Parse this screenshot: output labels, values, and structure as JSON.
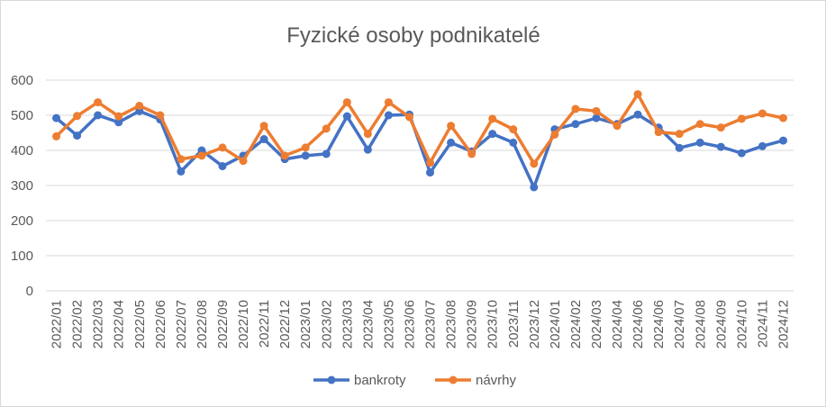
{
  "chart_data": {
    "type": "line",
    "title": "Fyzické osoby podnikatelé",
    "xlabel": "",
    "ylabel": "",
    "ylim": [
      0,
      600
    ],
    "yticks": [
      0,
      100,
      200,
      300,
      400,
      500,
      600
    ],
    "grid": true,
    "legend_position": "bottom",
    "categories": [
      "2022/01",
      "2022/02",
      "2022/03",
      "2022/04",
      "2022/05",
      "2022/06",
      "2022/07",
      "2022/08",
      "2022/09",
      "2022/10",
      "2022/11",
      "2022/12",
      "2023/01",
      "2023/02",
      "2023/03",
      "2023/04",
      "2023/05",
      "2023/06",
      "2023/07",
      "2023/08",
      "2023/09",
      "2023/10",
      "2023/11",
      "2023/12",
      "2024/01",
      "2024/02",
      "2024/03",
      "2024/04",
      "2024/06",
      "2024/06",
      "2024/07",
      "2024/08",
      "2024/09",
      "2024/10",
      "2024/11",
      "2024/12"
    ],
    "series": [
      {
        "name": "bankroty",
        "color": "#4472c4",
        "values": [
          492,
          442,
          500,
          480,
          512,
          488,
          340,
          400,
          355,
          385,
          432,
          375,
          385,
          390,
          497,
          402,
          500,
          502,
          337,
          422,
          397,
          447,
          422,
          295,
          460,
          475,
          492,
          475,
          502,
          465,
          407,
          422,
          410,
          392,
          412,
          428
        ]
      },
      {
        "name": "návrhy",
        "color": "#ed7d31",
        "values": [
          440,
          498,
          537,
          497,
          527,
          500,
          375,
          385,
          408,
          370,
          470,
          385,
          408,
          462,
          537,
          447,
          537,
          495,
          365,
          470,
          390,
          490,
          460,
          362,
          445,
          518,
          512,
          470,
          560,
          452,
          447,
          475,
          465,
          490,
          505,
          492
        ]
      }
    ]
  }
}
